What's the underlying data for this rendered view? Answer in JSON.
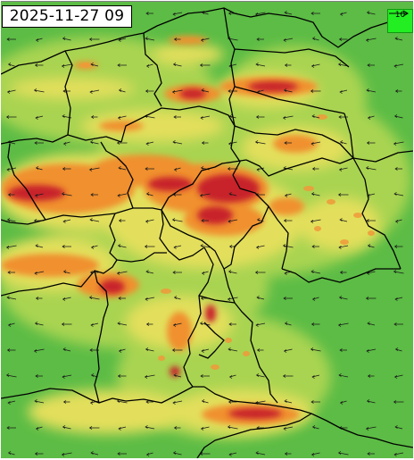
{
  "timestamp": "2025-11-27 09",
  "legend": {
    "reference_value": "10",
    "arrow_icon": "right-arrow-icon",
    "color": "#22ee22"
  },
  "colors": {
    "field_low": "#3fae3f",
    "field_mid": "#d8e060",
    "field_high": "#f08a30",
    "field_max": "#b5121b",
    "borders": "#000000"
  }
}
